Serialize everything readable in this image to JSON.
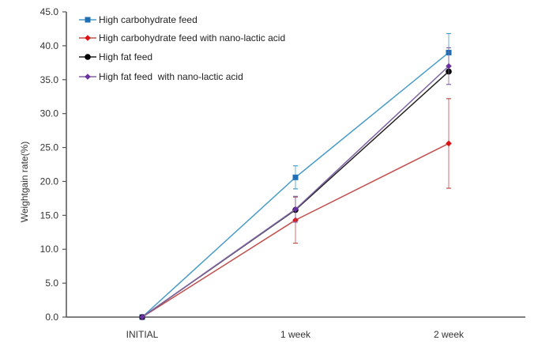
{
  "chart_data": {
    "type": "line",
    "title": "",
    "xlabel": "",
    "ylabel": "Weightgain rate(%)",
    "ylim": [
      0,
      45
    ],
    "yticks": [
      "0.0",
      "5.0",
      "10.0",
      "15.0",
      "20.0",
      "25.0",
      "30.0",
      "35.0",
      "40.0",
      "45.0"
    ],
    "categories": [
      "INITIAL",
      "1 week",
      "2 week"
    ],
    "legend_position": "top-left",
    "grid": false,
    "series": [
      {
        "name": "High carbohydrate feed",
        "color": "#4a9cc7",
        "marker": "square",
        "marker_color": "#1f6fb5",
        "values": [
          0.0,
          20.6,
          39.0
        ],
        "errors": [
          0.0,
          1.7,
          2.8
        ]
      },
      {
        "name": "High carbohydrate feed with nano-lactic acid",
        "color": "#c0504d",
        "marker": "diamond",
        "marker_color": "#e01010",
        "values": [
          0.0,
          14.3,
          25.6
        ],
        "errors": [
          0.0,
          3.4,
          6.6
        ]
      },
      {
        "name": "High fat feed",
        "color": "#222222",
        "marker": "circle",
        "marker_color": "#000000",
        "values": [
          0.0,
          15.8,
          36.2
        ],
        "errors": [
          0.0,
          0.0,
          0.0
        ]
      },
      {
        "name": "High fat feed  with nano-lactic acid",
        "color": "#8064a2",
        "marker": "diamond",
        "marker_color": "#6a2fa0",
        "values": [
          0.0,
          15.9,
          37.0
        ],
        "errors": [
          0.0,
          1.9,
          2.7
        ]
      }
    ]
  }
}
